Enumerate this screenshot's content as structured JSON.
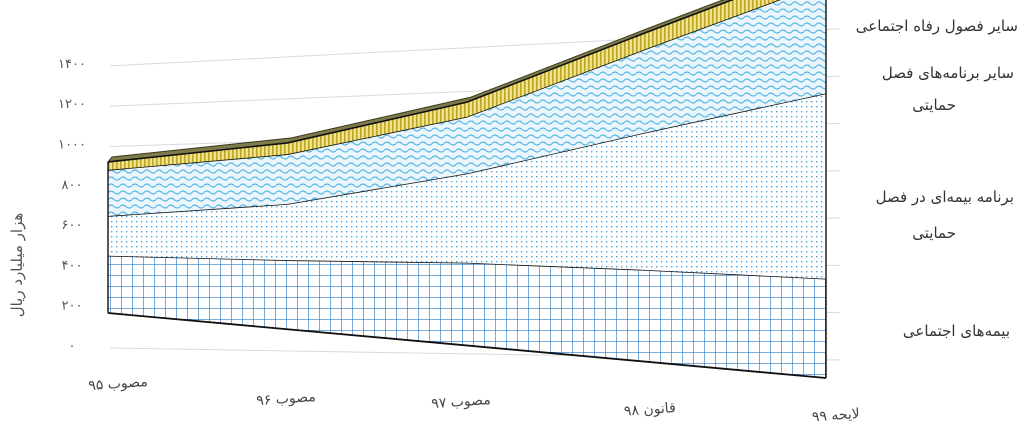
{
  "chart_data": {
    "type": "area",
    "stacked": true,
    "perspective_3d": true,
    "ylabel": "هزار میلیارد ریال",
    "ylim": [
      0,
      1400
    ],
    "y_ticks": [
      "۰",
      "۲۰۰",
      "۴۰۰",
      "۶۰۰",
      "۸۰۰",
      "۱۰۰۰",
      "۱۲۰۰",
      "۱۴۰۰"
    ],
    "categories": [
      "مصوب ۹۵",
      "مصوب ۹۶",
      "مصوب ۹۷",
      "قانون ۹۸",
      "لایحه ۹۹"
    ],
    "grid": true,
    "legend": "right",
    "series": [
      {
        "name": "بیمه‌های اجتماعی",
        "values": [
          180,
          215,
          255,
          280,
          300
        ],
        "color": "#3a7fc1",
        "pattern": "grid"
      },
      {
        "name": "برنامه بیمه‌ای در فصل حمایتی",
        "values": [
          125,
          175,
          275,
          420,
          560
        ],
        "color": "#5ab0e0",
        "pattern": "dots"
      },
      {
        "name": "سایر برنامه‌های فصل حمایتی",
        "values": [
          145,
          155,
          175,
          255,
          335
        ],
        "color": "#6cc6ea",
        "pattern": "waves"
      },
      {
        "name": "سایر فصول رفاه اجتماعی",
        "values": [
          25,
          35,
          45,
          50,
          55
        ],
        "color": "#c9b83a",
        "pattern": "stripes"
      }
    ]
  }
}
